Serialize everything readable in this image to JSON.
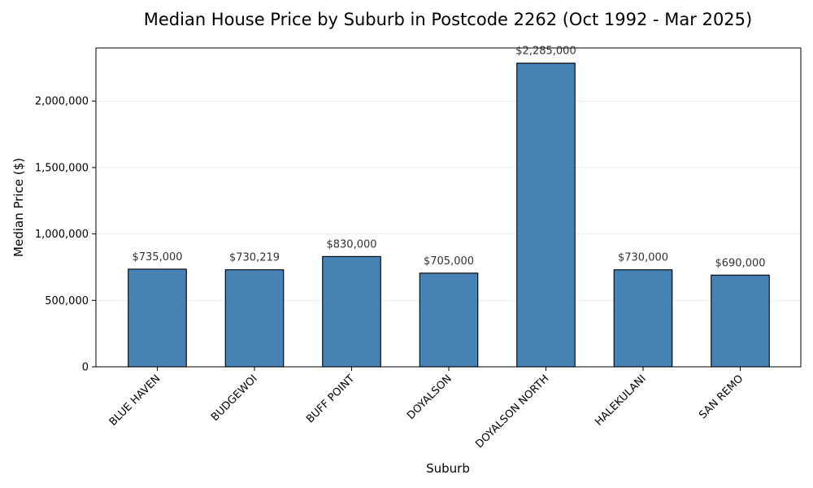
{
  "chart_data": {
    "type": "bar",
    "title": "Median House Price by Suburb in Postcode 2262 (Oct 1992 - Mar 2025)",
    "xlabel": "Suburb",
    "ylabel": "Median Price ($)",
    "categories": [
      "BLUE HAVEN",
      "BUDGEWOI",
      "BUFF POINT",
      "DOYALSON",
      "DOYALSON NORTH",
      "HALEKULANI",
      "SAN REMO"
    ],
    "values": [
      735000,
      730219,
      830000,
      705000,
      2285000,
      730000,
      690000
    ],
    "value_labels": [
      "$735,000",
      "$730,219",
      "$830,000",
      "$705,000",
      "$2,285,000",
      "$730,000",
      "$690,000"
    ],
    "ylim": [
      0,
      2399250
    ],
    "yticks": [
      0,
      500000,
      1000000,
      1500000,
      2000000
    ],
    "ytick_labels": [
      "0",
      "500,000",
      "1,000,000",
      "1,500,000",
      "2,000,000"
    ],
    "grid": "y",
    "bar_color": "#4682b4"
  }
}
